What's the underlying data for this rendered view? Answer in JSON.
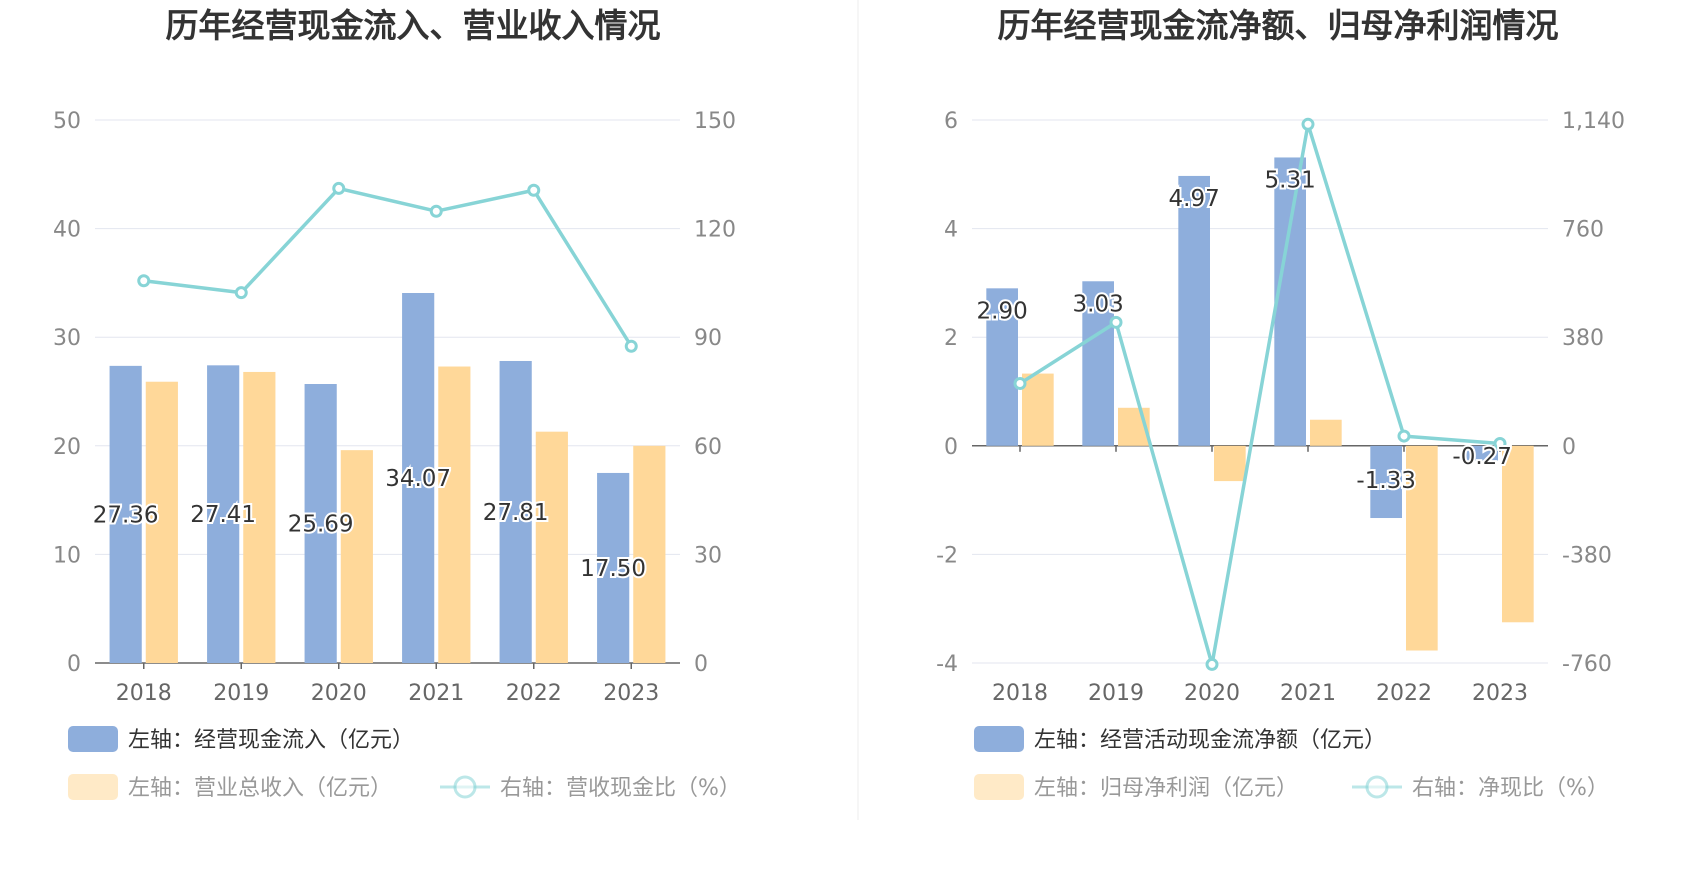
{
  "colors": {
    "blue": "#8eaedc",
    "orange": "#ffd899",
    "line": "#87d4d6",
    "grid": "#e3e6ef",
    "axis": "#666666"
  },
  "chart_data": [
    {
      "type": "bar",
      "title": "历年经营现金流入、营业收入情况",
      "categories": [
        "2018",
        "2019",
        "2020",
        "2021",
        "2022",
        "2023"
      ],
      "left_axis": {
        "ticks": [
          "50",
          "40",
          "30",
          "20",
          "10",
          "0"
        ],
        "ylim": [
          0,
          50
        ]
      },
      "right_axis": {
        "ticks": [
          "150",
          "120",
          "90",
          "60",
          "30",
          "0"
        ],
        "ylim": [
          0,
          150
        ]
      },
      "series": [
        {
          "name": "左轴：经营现金流入（亿元）",
          "kind": "bar",
          "axis": "left",
          "color": "blue",
          "values": [
            27.36,
            27.41,
            25.69,
            34.07,
            27.81,
            17.5
          ],
          "labels": [
            "27.36",
            "27.41",
            "25.69",
            "34.07",
            "27.81",
            "17.50"
          ]
        },
        {
          "name": "左轴：营业总收入（亿元）",
          "kind": "bar",
          "axis": "left",
          "color": "orange",
          "values": [
            25.9,
            26.8,
            19.6,
            27.3,
            21.3,
            20.0
          ]
        },
        {
          "name": "右轴：营收现金比（%）",
          "kind": "line",
          "axis": "right",
          "color": "line",
          "values": [
            105.6,
            102.3,
            131.1,
            124.8,
            130.6,
            87.5
          ]
        }
      ]
    },
    {
      "type": "bar",
      "title": "历年经营现金流净额、归母净利润情况",
      "categories": [
        "2018",
        "2019",
        "2020",
        "2021",
        "2022",
        "2023"
      ],
      "left_axis": {
        "ticks": [
          "6",
          "4",
          "2",
          "0",
          "-2",
          "-4"
        ],
        "ylim": [
          -4,
          6
        ]
      },
      "right_axis": {
        "ticks": [
          "1,140",
          "760",
          "380",
          "0",
          "-380",
          "-760"
        ],
        "ylim": [
          -760,
          1140
        ]
      },
      "series": [
        {
          "name": "左轴：经营活动现金流净额（亿元）",
          "kind": "bar",
          "axis": "left",
          "color": "blue",
          "values": [
            2.9,
            3.03,
            4.97,
            5.31,
            -1.33,
            -0.27
          ],
          "labels": [
            "2.90",
            "3.03",
            "4.97",
            "5.31",
            "-1.33",
            "-0.27"
          ]
        },
        {
          "name": "左轴：归母净利润（亿元）",
          "kind": "bar",
          "axis": "left",
          "color": "orange",
          "values": [
            1.33,
            0.7,
            -0.65,
            0.48,
            -3.77,
            -3.25
          ]
        },
        {
          "name": "右轴：净现比（%）",
          "kind": "line",
          "axis": "right",
          "color": "line",
          "values": [
            218,
            432,
            -765,
            1125,
            34,
            8
          ]
        }
      ]
    }
  ]
}
